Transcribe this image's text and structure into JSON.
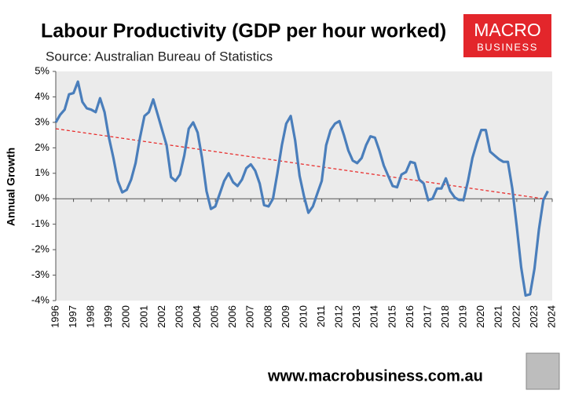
{
  "chart_data": {
    "type": "line",
    "title": "Labour Productivity (GDP per hour worked)",
    "subtitle": "Source: Australian Bureau of Statistics",
    "y_label": "Annual Growth",
    "footer": "www.macrobusiness.com.au",
    "logo": [
      "MACRO",
      "BUSINESS"
    ],
    "color": "#4a7ebb",
    "x": [
      1996,
      1996.25,
      1996.5,
      1996.75,
      1997,
      1997.25,
      1997.5,
      1997.75,
      1998,
      1998.25,
      1998.5,
      1998.75,
      1999,
      1999.25,
      1999.5,
      1999.75,
      2000,
      2000.25,
      2000.5,
      2000.75,
      2001,
      2001.25,
      2001.5,
      2001.75,
      2002,
      2002.25,
      2002.5,
      2002.75,
      2003,
      2003.25,
      2003.5,
      2003.75,
      2004,
      2004.25,
      2004.5,
      2004.75,
      2005,
      2005.25,
      2005.5,
      2005.75,
      2006,
      2006.25,
      2006.5,
      2006.75,
      2007,
      2007.25,
      2007.5,
      2007.75,
      2008,
      2008.25,
      2008.5,
      2008.75,
      2009,
      2009.25,
      2009.5,
      2009.75,
      2010,
      2010.25,
      2010.5,
      2010.75,
      2011,
      2011.25,
      2011.5,
      2011.75,
      2012,
      2012.25,
      2012.5,
      2012.75,
      2013,
      2013.25,
      2013.5,
      2013.75,
      2014,
      2014.25,
      2014.5,
      2014.75,
      2015,
      2015.25,
      2015.5,
      2015.75,
      2016,
      2016.25,
      2016.5,
      2016.75,
      2017,
      2017.25,
      2017.5,
      2017.75,
      2018,
      2018.25,
      2018.5,
      2018.75,
      2019,
      2019.25,
      2019.5,
      2019.75,
      2020,
      2020.25,
      2020.5,
      2020.75,
      2021,
      2021.25,
      2021.5,
      2021.75,
      2022,
      2022.25,
      2022.5,
      2022.75,
      2023,
      2023.25,
      2023.5,
      2023.75
    ],
    "values": [
      3.0,
      3.3,
      3.5,
      4.1,
      4.15,
      4.6,
      3.8,
      3.55,
      3.5,
      3.4,
      3.95,
      3.4,
      2.4,
      1.6,
      0.7,
      0.25,
      0.35,
      0.75,
      1.4,
      2.4,
      3.25,
      3.4,
      3.9,
      3.3,
      2.7,
      2.1,
      0.85,
      0.7,
      0.95,
      1.7,
      2.75,
      3.0,
      2.6,
      1.6,
      0.3,
      -0.4,
      -0.3,
      0.2,
      0.7,
      1.0,
      0.65,
      0.5,
      0.75,
      1.2,
      1.35,
      1.1,
      0.6,
      -0.25,
      -0.3,
      0.0,
      1.0,
      2.1,
      2.95,
      3.25,
      2.3,
      0.9,
      0.1,
      -0.55,
      -0.3,
      0.2,
      0.7,
      2.1,
      2.7,
      2.95,
      3.05,
      2.5,
      1.9,
      1.5,
      1.4,
      1.6,
      2.1,
      2.45,
      2.4,
      1.9,
      1.3,
      0.9,
      0.5,
      0.45,
      0.95,
      1.05,
      1.45,
      1.4,
      0.75,
      0.6,
      -0.05,
      0.0,
      0.4,
      0.4,
      0.8,
      0.3,
      0.05,
      -0.05,
      -0.05,
      0.7,
      1.6,
      2.2,
      2.7,
      2.7,
      1.85,
      1.7,
      1.55,
      1.45,
      1.45,
      0.4,
      -1.1,
      -2.7,
      -3.8,
      -3.75,
      -2.75,
      -1.2,
      -0.05,
      0.3
    ],
    "trend": {
      "x": [
        1996,
        2023.5
      ],
      "values": [
        2.75,
        0.0
      ],
      "color": "#e8201f"
    },
    "xlim": [
      1996,
      2024
    ],
    "xticks": [
      1996,
      1997,
      1998,
      1999,
      2000,
      2001,
      2002,
      2003,
      2004,
      2005,
      2006,
      2007,
      2008,
      2009,
      2010,
      2011,
      2012,
      2013,
      2014,
      2015,
      2016,
      2017,
      2018,
      2019,
      2020,
      2021,
      2022,
      2023,
      2024
    ],
    "ylim": [
      -4,
      5
    ],
    "yticks": [
      {
        "value": -4,
        "label": "-4%"
      },
      {
        "value": -3,
        "label": "-3%"
      },
      {
        "value": -2,
        "label": "-2%"
      },
      {
        "value": -1,
        "label": "-1%"
      },
      {
        "value": 0,
        "label": "0%"
      },
      {
        "value": 1,
        "label": "1%"
      },
      {
        "value": 2,
        "label": "2%"
      },
      {
        "value": 3,
        "label": "3%"
      },
      {
        "value": 4,
        "label": "4%"
      },
      {
        "value": 5,
        "label": "5%"
      }
    ],
    "plot_background": "#ebebeb"
  }
}
